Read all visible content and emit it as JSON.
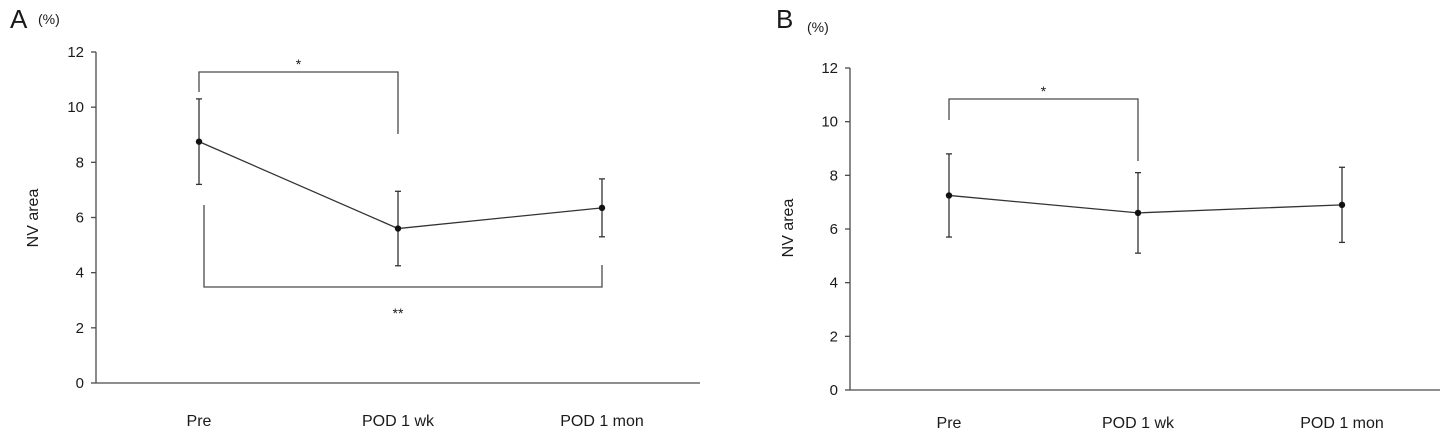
{
  "chart_data": [
    {
      "panel": "A",
      "type": "line",
      "unit": "(%)",
      "ylabel": "NV area",
      "ylim": [
        0,
        12
      ],
      "yticks": [
        0,
        2,
        4,
        6,
        8,
        10,
        12
      ],
      "categories": [
        "Pre",
        "POD 1 wk",
        "POD 1 mon"
      ],
      "series": [
        {
          "values": [
            8.75,
            5.6,
            6.35
          ],
          "error": [
            1.55,
            1.35,
            1.05
          ]
        }
      ],
      "significance": [
        {
          "label": "*",
          "from": 0,
          "to": 1,
          "placement": "above"
        },
        {
          "label": "**",
          "from": 0,
          "to": 2,
          "placement": "below"
        }
      ],
      "grid": false
    },
    {
      "panel": "B",
      "type": "line",
      "unit": "(%)",
      "ylabel": "NV area",
      "ylim": [
        0,
        12
      ],
      "yticks": [
        0,
        2,
        4,
        6,
        8,
        10,
        12
      ],
      "categories": [
        "Pre",
        "POD 1 wk",
        "POD 1 mon"
      ],
      "series": [
        {
          "values": [
            7.25,
            6.6,
            6.9
          ],
          "error": [
            1.55,
            1.5,
            1.4
          ]
        }
      ],
      "significance": [
        {
          "label": "*",
          "from": 0,
          "to": 1,
          "placement": "above"
        }
      ],
      "grid": false
    }
  ]
}
